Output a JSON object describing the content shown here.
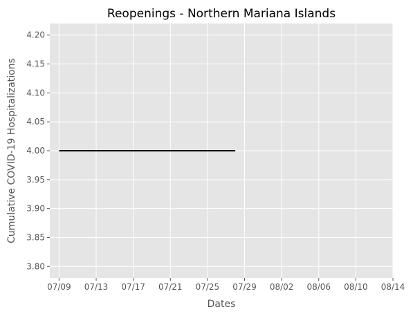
{
  "chart_data": {
    "type": "line",
    "title": "Reopenings - Northern Mariana Islands",
    "xlabel": "Dates",
    "ylabel": "Cumulative COVID-19 Hospitalizations",
    "x_tick_labels": [
      "07/09",
      "07/13",
      "07/17",
      "07/21",
      "07/25",
      "07/29",
      "08/02",
      "08/06",
      "08/10",
      "08/14"
    ],
    "x_ticks": [
      "2020-07-09",
      "2020-07-13",
      "2020-07-17",
      "2020-07-21",
      "2020-07-25",
      "2020-07-29",
      "2020-08-02",
      "2020-08-06",
      "2020-08-10",
      "2020-08-14"
    ],
    "y_tick_labels": [
      "3.80",
      "3.85",
      "3.90",
      "3.95",
      "4.00",
      "4.05",
      "4.10",
      "4.15",
      "4.20"
    ],
    "y_ticks": [
      3.8,
      3.85,
      3.9,
      3.95,
      4.0,
      4.05,
      4.1,
      4.15,
      4.2
    ],
    "xlim": [
      "2020-07-08",
      "2020-08-14"
    ],
    "ylim": [
      3.78,
      4.22
    ],
    "grid": true,
    "colors": {
      "plot_background": "#e5e5e5",
      "grid": "#ffffff",
      "line": "#000000"
    },
    "series": [
      {
        "x": [
          "2020-07-09",
          "2020-07-28"
        ],
        "y": [
          4,
          4
        ]
      }
    ]
  }
}
